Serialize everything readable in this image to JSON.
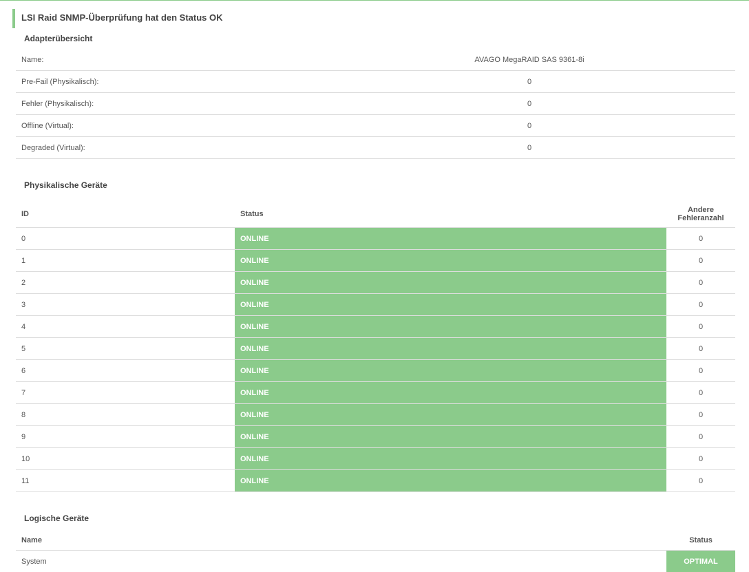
{
  "header": {
    "title": "LSI Raid SNMP-Überprüfung hat den Status OK"
  },
  "adapter": {
    "title": "Adapterübersicht",
    "rows": [
      [
        "Name:",
        "AVAGO MegaRAID SAS 9361-8i"
      ],
      [
        "Pre-Fail (Physikalisch):",
        "0"
      ],
      [
        "Fehler (Physikalisch):",
        "0"
      ],
      [
        "Offline (Virtual):",
        "0"
      ],
      [
        "Degraded (Virtual):",
        "0"
      ]
    ]
  },
  "physical": {
    "title": "Physikalische Geräte",
    "columns": [
      "ID",
      "Status",
      "Andere Fehleranzahl"
    ],
    "rows": [
      [
        "0",
        "ONLINE",
        "0"
      ],
      [
        "1",
        "ONLINE",
        "0"
      ],
      [
        "2",
        "ONLINE",
        "0"
      ],
      [
        "3",
        "ONLINE",
        "0"
      ],
      [
        "4",
        "ONLINE",
        "0"
      ],
      [
        "5",
        "ONLINE",
        "0"
      ],
      [
        "6",
        "ONLINE",
        "0"
      ],
      [
        "7",
        "ONLINE",
        "0"
      ],
      [
        "8",
        "ONLINE",
        "0"
      ],
      [
        "9",
        "ONLINE",
        "0"
      ],
      [
        "10",
        "ONLINE",
        "0"
      ],
      [
        "11",
        "ONLINE",
        "0"
      ]
    ]
  },
  "logical": {
    "title": "Logische Geräte",
    "columns": [
      "Name",
      "Status"
    ],
    "rows": [
      [
        "System",
        "OPTIMAL"
      ]
    ]
  }
}
